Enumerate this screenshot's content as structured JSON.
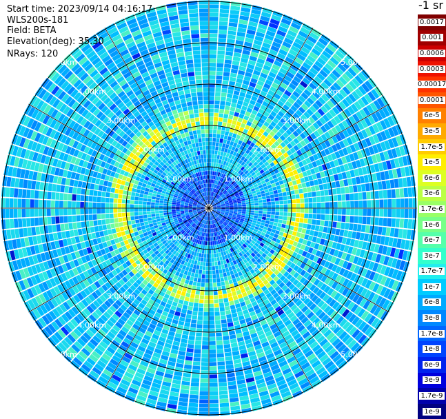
{
  "header": {
    "start_time": "Start time: 2023/09/14 04:16:17",
    "device": "WLS200s-181",
    "field": "Field: BETA",
    "elevation": "Elevation(deg): 35.30",
    "nrays": "NRays: 120"
  },
  "units_label": "-1 sr",
  "range_ring_labels": [
    "1.00km",
    "2.00km",
    "3.00km",
    "4.00km",
    "5.00km"
  ],
  "colorbar": {
    "labels": [
      "0.0017",
      "0.001",
      "0.0006",
      "0.0003",
      "0.00017",
      "0.0001",
      "6e-5",
      "3e-5",
      "1.7e-5",
      "1e-5",
      "6e-6",
      "3e-6",
      "1.7e-6",
      "1e-6",
      "6e-7",
      "3e-7",
      "1.7e-7",
      "1e-7",
      "6e-8",
      "3e-8",
      "1.7e-8",
      "1e-8",
      "6e-9",
      "3e-9",
      "1.7e-9",
      "1e-9"
    ],
    "colors": [
      "#800000",
      "#a00000",
      "#cc0000",
      "#ee1100",
      "#ff3300",
      "#ff5500",
      "#ff8000",
      "#ffaa00",
      "#ffcc00",
      "#ffee00",
      "#ddff22",
      "#bbff44",
      "#99ff66",
      "#77ff88",
      "#55ffaa",
      "#33ffcc",
      "#22eeee",
      "#00ccff",
      "#00aaff",
      "#0088ff",
      "#0066ff",
      "#0044ff",
      "#0022ee",
      "#0000dd",
      "#0000aa",
      "#000080"
    ]
  }
}
